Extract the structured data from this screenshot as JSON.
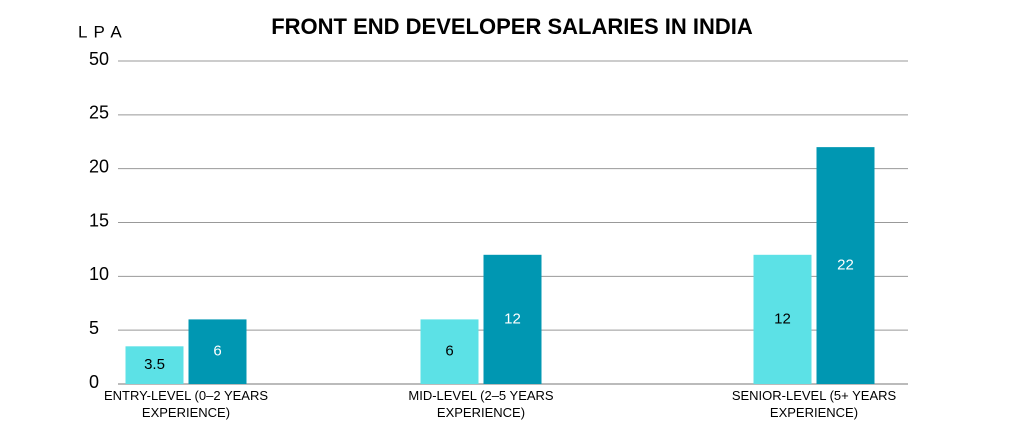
{
  "chart_data": {
    "type": "bar",
    "title": "FRONT END DEVELOPER SALARIES IN INDIA",
    "y_label": "L P A",
    "categories": [
      "ENTRY-LEVEL (0–2 YEARS EXPERIENCE)",
      "MID-LEVEL (2–5 YEARS EXPERIENCE)",
      "SENIOR-LEVEL (5+ YEARS EXPERIENCE)"
    ],
    "series": [
      {
        "color": "#5ce1e6",
        "values": [
          3.5,
          6,
          12
        ]
      },
      {
        "color": "#0097b2",
        "values": [
          6,
          12,
          22
        ]
      }
    ],
    "ylim": [
      0,
      50
    ],
    "yticks": [
      0,
      5,
      10,
      15,
      20,
      25,
      50
    ],
    "grid": true
  }
}
